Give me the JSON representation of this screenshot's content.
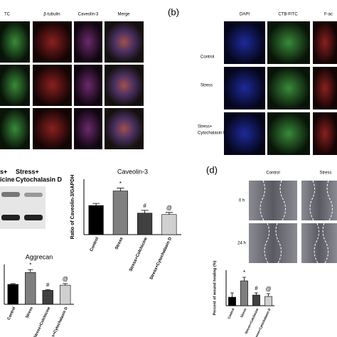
{
  "panel_a": {
    "headers": [
      "TC",
      "β-tubulin",
      "Caveolin-3",
      "Merge"
    ]
  },
  "panel_b": {
    "label": "(b)",
    "headers": [
      "DAPI",
      "CTB-FITC",
      "F-ac"
    ],
    "row_labels": [
      "Control",
      "Stress",
      "Stress+",
      "Cytochalasin D"
    ]
  },
  "panel_c": {
    "blot_labels": [
      "s+",
      "icine",
      "Stress+",
      "Cytochalasin D"
    ]
  },
  "panel_d": {
    "label": "(d)",
    "headers": [
      "Control",
      "Stress"
    ],
    "row_labels": [
      "0 h",
      "24 h"
    ]
  },
  "chart_data": [
    {
      "type": "bar",
      "title": "Caveolin-3",
      "ylabel": "Ratio of Caveolin-3/GAPDH",
      "categories": [
        "Control",
        "Stress",
        "Stress+Colchicine",
        "Stress+Cytochalasin D"
      ],
      "values": [
        0.42,
        0.63,
        0.31,
        0.29
      ],
      "errors": [
        0.03,
        0.04,
        0.04,
        0.03
      ],
      "annotations": [
        null,
        "*",
        "#",
        "@"
      ],
      "colors": [
        "#000000",
        "#7f7f7f",
        "#404040",
        "#d0d0d0"
      ],
      "ylim": [
        0,
        0.8
      ]
    },
    {
      "type": "bar",
      "title": "Aggrecan",
      "categories": [
        "Control",
        "Stress",
        "Stress+Colchicine",
        "Stress+Cytochalasin D"
      ],
      "values": [
        0.5,
        0.8,
        0.35,
        0.48
      ],
      "errors": [
        0.02,
        0.07,
        0.02,
        0.04
      ],
      "annotations": [
        null,
        "*",
        "#",
        "@"
      ],
      "colors": [
        "#000000",
        "#7f7f7f",
        "#404040",
        "#d0d0d0"
      ],
      "ylim": [
        0,
        1
      ]
    },
    {
      "type": "bar",
      "ylabel": "Percent of wound healing (%)",
      "categories": [
        "Control",
        "Stress",
        "Stress+Colchicine",
        "Stress+Cytochalasin D"
      ],
      "values": [
        12,
        35,
        15,
        13
      ],
      "errors": [
        6,
        5,
        3,
        4
      ],
      "annotations": [
        null,
        "*",
        "#",
        "@"
      ],
      "colors": [
        "#000000",
        "#7f7f7f",
        "#404040",
        "#d0d0d0"
      ],
      "ylim": [
        0,
        50
      ]
    }
  ]
}
